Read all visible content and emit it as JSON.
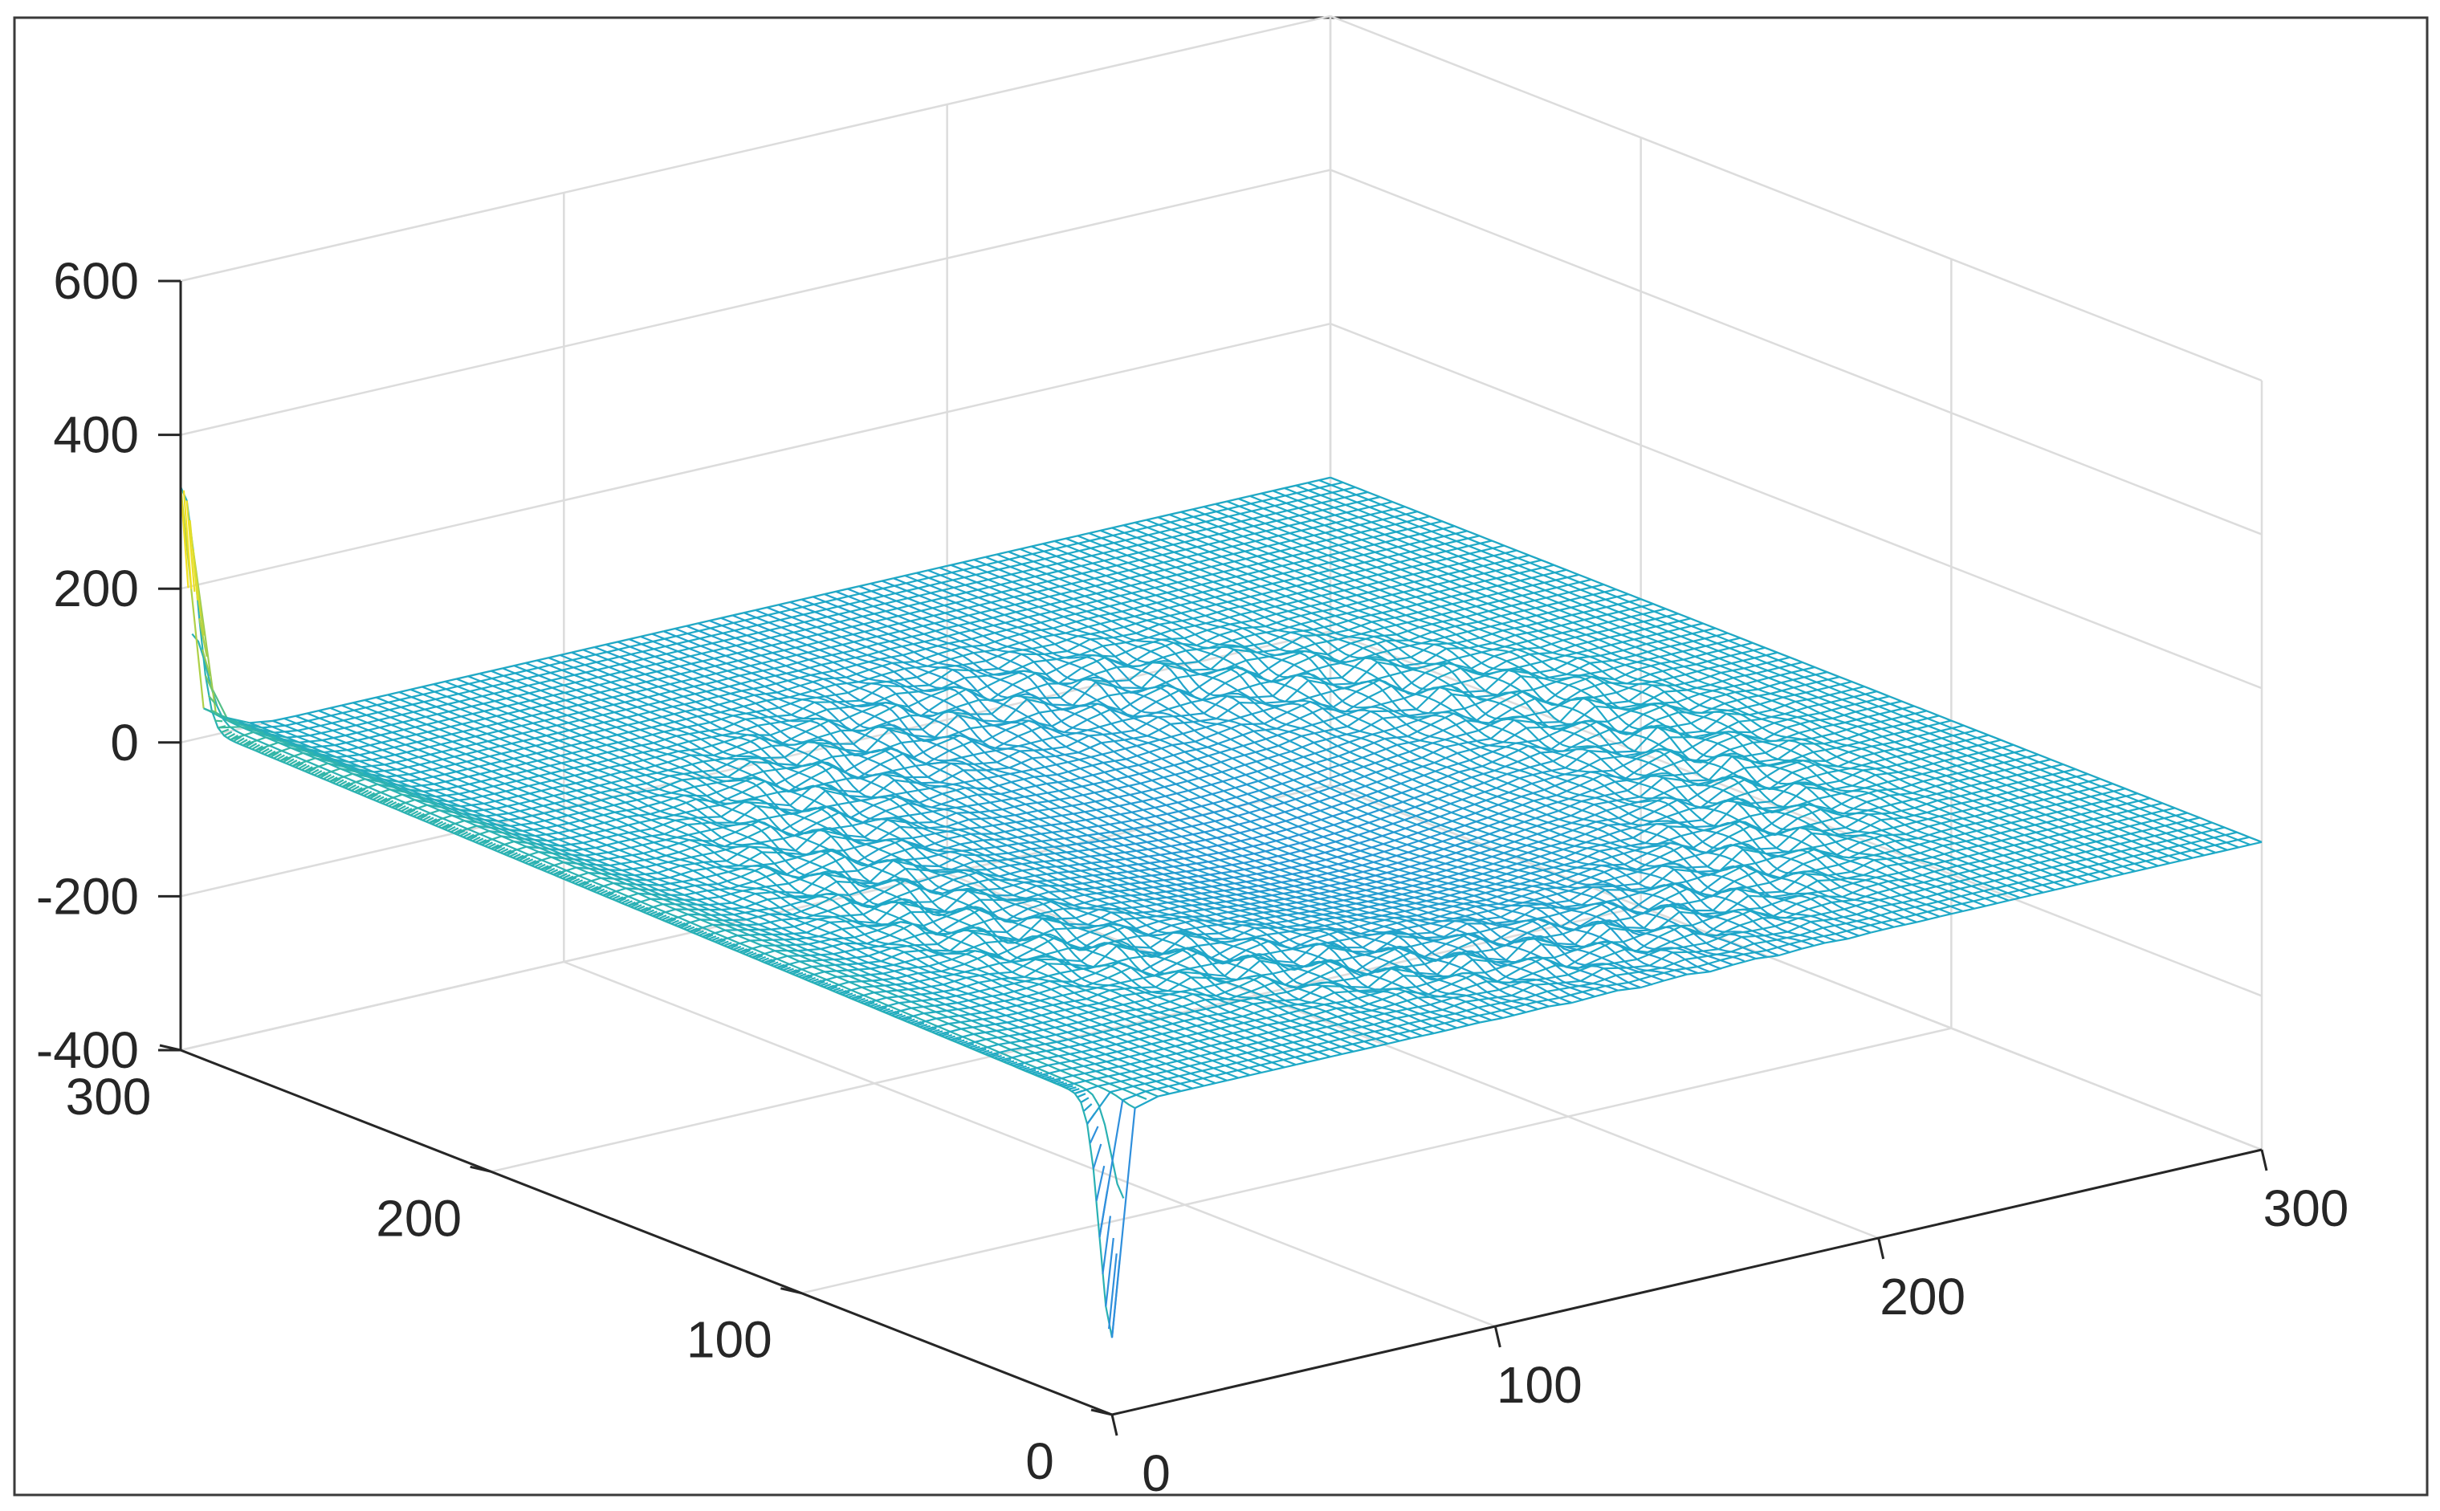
{
  "chart_data": {
    "type": "surface",
    "title": "",
    "xlabel": "",
    "ylabel": "",
    "zlabel": "",
    "xlim": [
      0,
      300
    ],
    "ylim": [
      0,
      300
    ],
    "zlim": [
      -400,
      600
    ],
    "x_ticks": [
      "0",
      "100",
      "200",
      "300"
    ],
    "y_ticks": [
      "0",
      "100",
      "200",
      "300"
    ],
    "z_ticks": [
      "-400",
      "-200",
      "0",
      "200",
      "400",
      "600"
    ],
    "grid": true,
    "colormap": "parula",
    "colors": {
      "low": "#2f8fdc",
      "mid": "#1ea9c6",
      "high_mid": "#3cbc9a",
      "high": "#9acb52",
      "peak": "#f5e21f"
    },
    "surface_summary": {
      "baseline_z": 0,
      "central_depression_z": -45,
      "corner_spike": {
        "x": 0,
        "y": 300,
        "z_max": 350,
        "z_min": -130
      },
      "edge_dip": {
        "x": 0,
        "y": 0,
        "z_min": -300
      }
    }
  }
}
